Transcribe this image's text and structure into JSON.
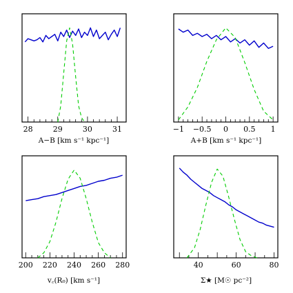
{
  "chart_data": [
    {
      "type": "line",
      "xlabel": "A−B [km s⁻¹ kpc⁻¹]",
      "xlim": [
        27.8,
        31.3
      ],
      "ylim": [
        0,
        1
      ],
      "major_ticks": [
        28,
        29,
        30,
        31
      ],
      "minor_step": 0.2,
      "tick_labels": [
        "28",
        "29",
        "30",
        "31"
      ],
      "series": [
        {
          "style": "solid",
          "color": "#0000cc",
          "x": [
            27.9,
            28.0,
            28.1,
            28.2,
            28.3,
            28.4,
            28.5,
            28.6,
            28.7,
            28.8,
            28.9,
            29.0,
            29.1,
            29.2,
            29.3,
            29.4,
            29.5,
            29.6,
            29.7,
            29.8,
            29.9,
            30.0,
            30.1,
            30.2,
            30.3,
            30.4,
            30.5,
            30.6,
            30.7,
            30.8,
            30.9,
            31.0,
            31.1
          ],
          "y": [
            0.74,
            0.77,
            0.76,
            0.75,
            0.76,
            0.78,
            0.74,
            0.8,
            0.77,
            0.79,
            0.81,
            0.75,
            0.83,
            0.79,
            0.85,
            0.78,
            0.84,
            0.8,
            0.86,
            0.78,
            0.83,
            0.8,
            0.87,
            0.79,
            0.85,
            0.77,
            0.8,
            0.83,
            0.76,
            0.81,
            0.85,
            0.79,
            0.87
          ]
        },
        {
          "style": "dashed",
          "color": "#00cc00",
          "x": [
            29.0,
            29.1,
            29.2,
            29.3,
            29.4,
            29.5,
            29.6,
            29.7,
            29.8,
            29.9
          ],
          "y": [
            0.0,
            0.15,
            0.45,
            0.75,
            0.87,
            0.72,
            0.42,
            0.15,
            0.04,
            0.0
          ]
        }
      ]
    },
    {
      "type": "line",
      "xlabel": "A+B [km s⁻¹ kpc⁻¹]",
      "xlim": [
        -1.1,
        1.1
      ],
      "ylim": [
        0,
        1
      ],
      "major_ticks": [
        -1,
        -0.5,
        0,
        0.5,
        1
      ],
      "minor_step": 0.1,
      "tick_labels": [
        "−1",
        "−0.5",
        "0",
        "0.5",
        "1"
      ],
      "series": [
        {
          "style": "solid",
          "color": "#0000cc",
          "x": [
            -1.0,
            -0.9,
            -0.8,
            -0.7,
            -0.6,
            -0.5,
            -0.4,
            -0.3,
            -0.2,
            -0.1,
            0.0,
            0.1,
            0.2,
            0.3,
            0.4,
            0.5,
            0.6,
            0.7,
            0.8,
            0.9,
            1.0
          ],
          "y": [
            0.86,
            0.83,
            0.85,
            0.8,
            0.82,
            0.79,
            0.81,
            0.77,
            0.8,
            0.76,
            0.79,
            0.74,
            0.77,
            0.73,
            0.76,
            0.71,
            0.75,
            0.69,
            0.73,
            0.68,
            0.7
          ]
        },
        {
          "style": "dashed",
          "color": "#00cc00",
          "x": [
            -1.0,
            -0.8,
            -0.6,
            -0.4,
            -0.2,
            0.0,
            0.2,
            0.4,
            0.6,
            0.8,
            1.0
          ],
          "y": [
            0.02,
            0.14,
            0.32,
            0.56,
            0.76,
            0.87,
            0.78,
            0.55,
            0.3,
            0.1,
            0.02
          ]
        }
      ]
    },
    {
      "type": "line",
      "xlabel": "v꜀(R₀) [km s⁻¹]",
      "xlim": [
        197,
        283
      ],
      "ylim": [
        0,
        1
      ],
      "major_ticks": [
        200,
        220,
        240,
        260,
        280
      ],
      "minor_step": 5,
      "tick_labels": [
        "200",
        "220",
        "240",
        "260",
        "280"
      ],
      "series": [
        {
          "style": "solid",
          "color": "#0000cc",
          "x": [
            200,
            205,
            210,
            215,
            220,
            225,
            230,
            235,
            240,
            245,
            250,
            255,
            260,
            265,
            270,
            275,
            280
          ],
          "y": [
            0.56,
            0.57,
            0.58,
            0.6,
            0.61,
            0.62,
            0.64,
            0.66,
            0.68,
            0.7,
            0.71,
            0.73,
            0.75,
            0.76,
            0.78,
            0.79,
            0.81
          ]
        },
        {
          "style": "dashed",
          "color": "#00cc00",
          "x": [
            210,
            215,
            220,
            225,
            230,
            235,
            240,
            245,
            250,
            255,
            260,
            265,
            270
          ],
          "y": [
            0.0,
            0.05,
            0.16,
            0.35,
            0.58,
            0.77,
            0.86,
            0.78,
            0.58,
            0.35,
            0.15,
            0.05,
            0.0
          ]
        }
      ]
    },
    {
      "type": "line",
      "xlabel": "Σ★ [M☉ pc⁻²]",
      "xlim": [
        27,
        82
      ],
      "ylim": [
        0,
        1
      ],
      "major_ticks": [
        30,
        40,
        50,
        60,
        70,
        80
      ],
      "minor_step": 5,
      "tick_labels": [
        "",
        "40",
        "",
        "60",
        "",
        "80"
      ],
      "series": [
        {
          "style": "solid",
          "color": "#0000cc",
          "x": [
            30,
            32,
            34,
            36,
            38,
            40,
            42,
            44,
            46,
            48,
            50,
            52,
            54,
            56,
            58,
            60,
            62,
            64,
            66,
            68,
            70,
            72,
            74,
            76,
            78,
            80
          ],
          "y": [
            0.88,
            0.84,
            0.81,
            0.77,
            0.74,
            0.71,
            0.68,
            0.66,
            0.64,
            0.61,
            0.59,
            0.57,
            0.55,
            0.52,
            0.5,
            0.47,
            0.45,
            0.43,
            0.41,
            0.39,
            0.37,
            0.35,
            0.34,
            0.32,
            0.31,
            0.3
          ]
        },
        {
          "style": "dashed",
          "color": "#00cc00",
          "x": [
            34,
            38,
            41,
            44,
            47,
            50,
            53,
            56,
            59,
            62,
            65,
            68,
            71
          ],
          "y": [
            0.0,
            0.1,
            0.28,
            0.52,
            0.74,
            0.87,
            0.8,
            0.6,
            0.38,
            0.18,
            0.06,
            0.02,
            0.0
          ]
        }
      ]
    }
  ]
}
